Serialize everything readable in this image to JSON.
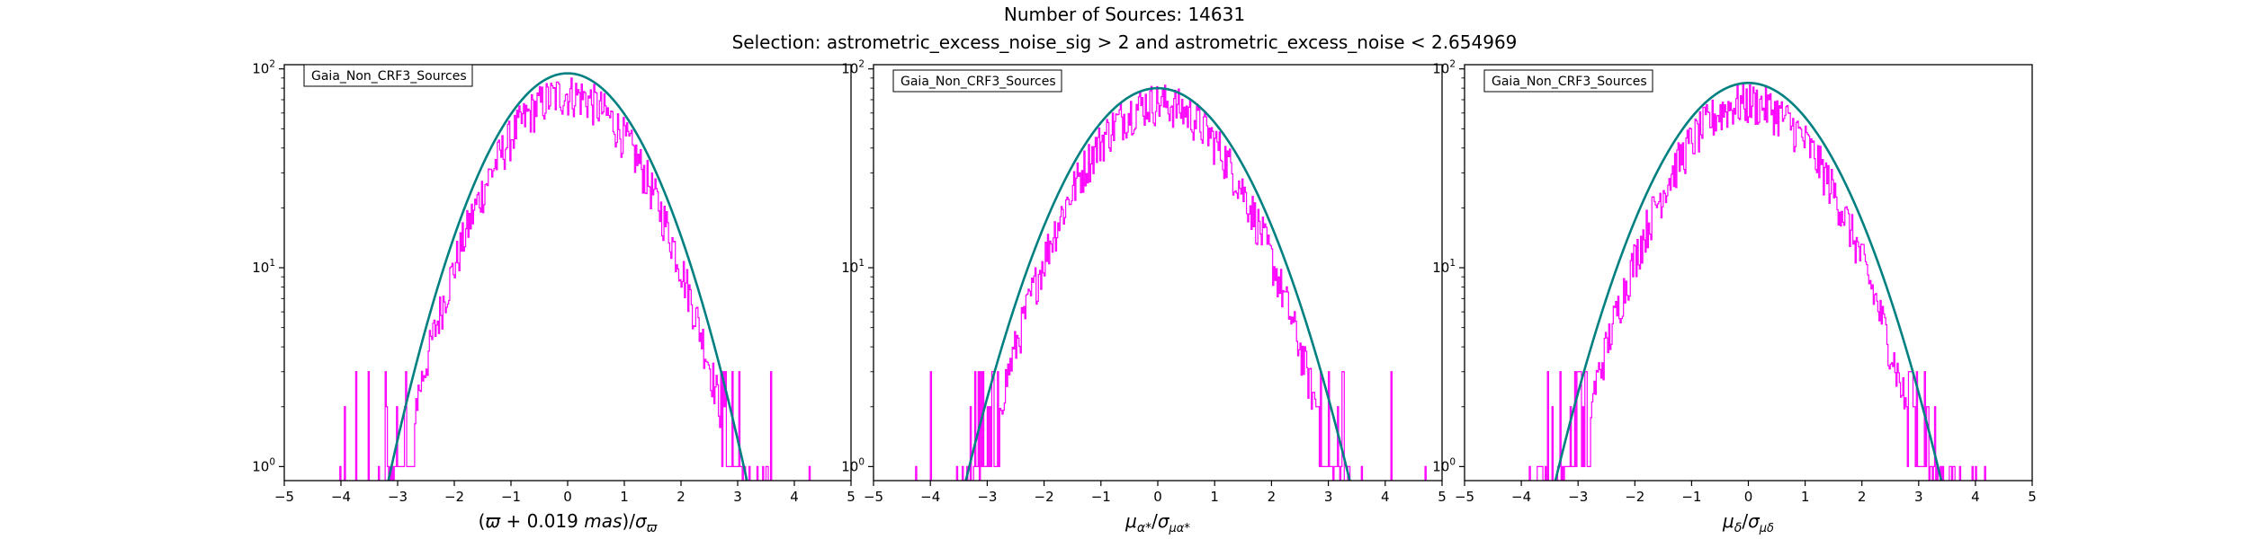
{
  "figure": {
    "title_line1": "Number of Sources: 14631",
    "title_line2": "Selection: astrometric_excess_noise_sig > 2 and astrometric_excess_noise < 2.654969"
  },
  "colors": {
    "histogram": "#ff00ff",
    "fit": "#008080",
    "axes": "#000000"
  },
  "chart_data": [
    {
      "type": "line",
      "title": "",
      "xlabel": "(ϖ + 0.019 mas)/σϖ",
      "ylabel": "",
      "legend": "Gaia_Non_CRF3_Sources",
      "legend_position": "top-left",
      "xlim": [
        -5,
        5
      ],
      "ylim": [
        0.85,
        105
      ],
      "yscale": "log",
      "grid": false,
      "x_ticks": [
        "−5",
        "−4",
        "−3",
        "−2",
        "−1",
        "0",
        "1",
        "2",
        "3",
        "4",
        "5"
      ],
      "y_ticks": [
        {
          "base": "10",
          "exp": "0",
          "value": 1
        },
        {
          "base": "10",
          "exp": "1",
          "value": 10
        },
        {
          "base": "10",
          "exp": "2",
          "value": 100
        }
      ],
      "series": [
        {
          "kind": "histogram",
          "bin_width": 0.02,
          "x_min": -5,
          "x_max": 5,
          "peak": 75,
          "sigma": 1.0,
          "mu": 0.0
        },
        {
          "kind": "gaussian_fit",
          "amplitude": 95,
          "mu": 0.0,
          "sigma": 1.03
        }
      ]
    },
    {
      "type": "line",
      "title": "",
      "xlabel": "μα*/σμα*",
      "ylabel": "",
      "legend": "Gaia_Non_CRF3_Sources",
      "legend_position": "top-left",
      "xlim": [
        -5,
        5
      ],
      "ylim": [
        0.85,
        105
      ],
      "yscale": "log",
      "grid": false,
      "x_ticks": [
        "−5",
        "−4",
        "−3",
        "−2",
        "−1",
        "0",
        "1",
        "2",
        "3",
        "4",
        "5"
      ],
      "y_ticks": [
        {
          "base": "10",
          "exp": "0",
          "value": 1
        },
        {
          "base": "10",
          "exp": "1",
          "value": 10
        },
        {
          "base": "10",
          "exp": "2",
          "value": 100
        }
      ],
      "series": [
        {
          "kind": "histogram",
          "bin_width": 0.02,
          "x_min": -5,
          "x_max": 5,
          "peak": 68,
          "sigma": 1.05,
          "mu": 0.0
        },
        {
          "kind": "gaussian_fit",
          "amplitude": 80,
          "mu": 0.0,
          "sigma": 1.12
        }
      ]
    },
    {
      "type": "line",
      "title": "",
      "xlabel": "μδ/σμδ",
      "ylabel": "",
      "legend": "Gaia_Non_CRF3_Sources",
      "legend_position": "top-left",
      "xlim": [
        -5,
        5
      ],
      "ylim": [
        0.85,
        105
      ],
      "yscale": "log",
      "grid": false,
      "x_ticks": [
        "−5",
        "−4",
        "−3",
        "−2",
        "−1",
        "0",
        "1",
        "2",
        "3",
        "4",
        "5"
      ],
      "y_ticks": [
        {
          "base": "10",
          "exp": "0",
          "value": 1
        },
        {
          "base": "10",
          "exp": "1",
          "value": 10
        },
        {
          "base": "10",
          "exp": "2",
          "value": 100
        }
      ],
      "series": [
        {
          "kind": "histogram",
          "bin_width": 0.02,
          "x_min": -5,
          "x_max": 5,
          "peak": 68,
          "sigma": 1.05,
          "mu": 0.0
        },
        {
          "kind": "gaussian_fit",
          "amplitude": 85,
          "mu": 0.0,
          "sigma": 1.12
        }
      ]
    }
  ]
}
